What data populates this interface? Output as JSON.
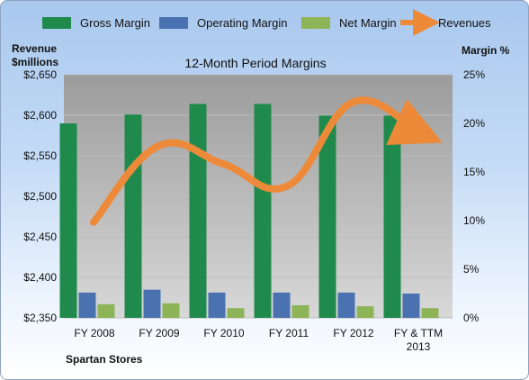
{
  "chart_data": {
    "type": "bar",
    "title": "12-Month Period Margins",
    "company": "Spartan Stores",
    "categories": [
      "FY 2008",
      "FY 2009",
      "FY 2010",
      "FY 2011",
      "FY 2012",
      "FY & TTM 2013"
    ],
    "left_axis": {
      "label_line1": "Revenue",
      "label_line2": "$millions",
      "range": [
        2350,
        2650
      ],
      "ticks": [
        {
          "value": 2350,
          "label": "$2,350"
        },
        {
          "value": 2400,
          "label": "$2,400"
        },
        {
          "value": 2450,
          "label": "$2,450"
        },
        {
          "value": 2500,
          "label": "$2,500"
        },
        {
          "value": 2550,
          "label": "$2,550"
        },
        {
          "value": 2600,
          "label": "$2,600"
        },
        {
          "value": 2650,
          "label": "$2,650"
        }
      ]
    },
    "right_axis": {
      "label": "Margin %",
      "range": [
        0,
        25
      ],
      "ticks": [
        {
          "value": 0,
          "label": "0%"
        },
        {
          "value": 5,
          "label": "5%"
        },
        {
          "value": 10,
          "label": "10%"
        },
        {
          "value": 15,
          "label": "15%"
        },
        {
          "value": 20,
          "label": "20%"
        },
        {
          "value": 25,
          "label": "25%"
        }
      ]
    },
    "series": [
      {
        "name": "Gross Margin",
        "axis": "right",
        "kind": "bar",
        "color": "#1f8a4c",
        "values": [
          20.0,
          20.9,
          22.0,
          22.0,
          20.8,
          20.8
        ]
      },
      {
        "name": "Operating Margin",
        "axis": "right",
        "kind": "bar",
        "color": "#4a72b0",
        "values": [
          2.6,
          2.9,
          2.6,
          2.6,
          2.6,
          2.5
        ]
      },
      {
        "name": "Net Margin",
        "axis": "right",
        "kind": "bar",
        "color": "#8eb458",
        "values": [
          1.4,
          1.5,
          1.0,
          1.3,
          1.2,
          1.0
        ]
      },
      {
        "name": "Revenues",
        "axis": "left",
        "kind": "line",
        "color": "#ed8a3a",
        "values": [
          2468,
          2562,
          2540,
          2513,
          2616,
          2580
        ]
      }
    ],
    "legend_position": "top",
    "grid": "horizontal"
  }
}
